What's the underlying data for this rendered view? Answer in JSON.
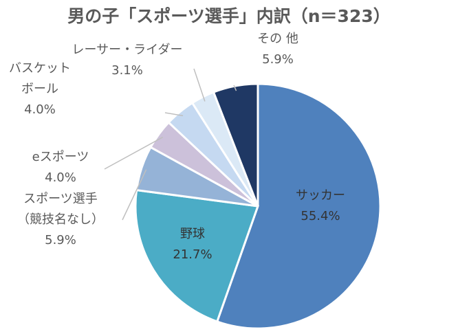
{
  "chart_data": {
    "type": "pie",
    "title": "男の子「スポーツ選手」内訳（n＝323）",
    "slices": [
      {
        "label_lines": [
          "サッカー"
        ],
        "value_label": "55.4%",
        "value": 55.4,
        "color": "#4f81bd"
      },
      {
        "label_lines": [
          "野球"
        ],
        "value_label": "21.7%",
        "value": 21.7,
        "color": "#4bacc6"
      },
      {
        "label_lines": [
          "スポーツ選手",
          "（競技名なし）"
        ],
        "value_label": "5.9%",
        "value": 5.9,
        "color": "#95b3d7"
      },
      {
        "label_lines": [
          "eスポーツ"
        ],
        "value_label": "4.0%",
        "value": 4.0,
        "color": "#ccc1da"
      },
      {
        "label_lines": [
          "バスケット",
          "ボール"
        ],
        "value_label": "4.0%",
        "value": 4.0,
        "color": "#c5d9f1"
      },
      {
        "label_lines": [
          "レーサー・ライダー"
        ],
        "value_label": "3.1%",
        "value": 3.1,
        "color": "#dbe9f6"
      },
      {
        "label_lines": [
          "その 他"
        ],
        "value_label": "5.9%",
        "value": 5.9,
        "color": "#1f3864"
      }
    ]
  }
}
